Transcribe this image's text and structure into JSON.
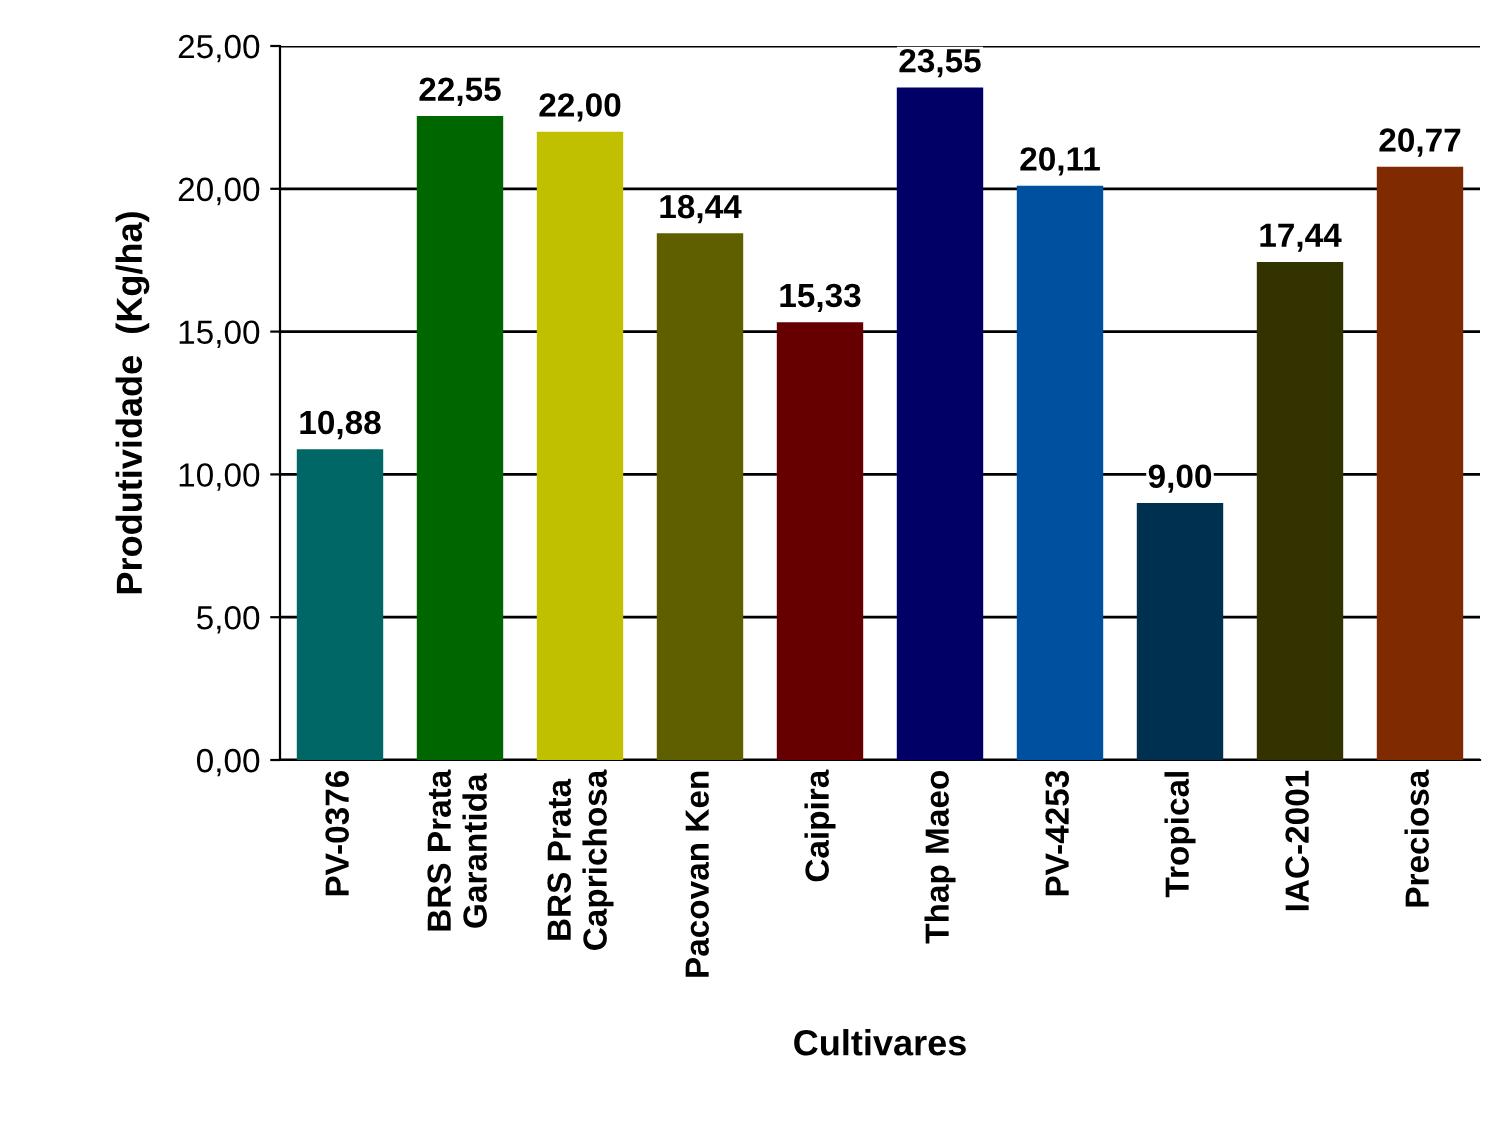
{
  "chart_data": {
    "type": "bar",
    "xlabel": "Cultivares",
    "ylabel": "Produtividade  (Kg/ha)",
    "categories": [
      "PV-0376",
      "BRS Prata\nGarantida",
      "BRS Prata\nCaprichosa",
      "Pacovan Ken",
      "Caipira",
      "Thap Maeo",
      "PV-4253",
      "Tropical",
      "IAC-2001",
      "Preciosa"
    ],
    "values": [
      10.88,
      22.55,
      22.0,
      18.44,
      15.33,
      23.55,
      20.11,
      9.0,
      17.44,
      20.77
    ],
    "value_labels": [
      "10,88",
      "22,55",
      "22,00",
      "18,44",
      "15,33",
      "23,55",
      "20,11",
      "9,00",
      "17,44",
      "20,77"
    ],
    "colors": [
      "#006666",
      "#006600",
      "#c0c000",
      "#5f5f00",
      "#660000",
      "#000066",
      "#0050a0",
      "#003050",
      "#333300",
      "#7f2a00"
    ],
    "ylim": [
      0,
      25
    ],
    "yticks": [
      {
        "value": 0,
        "label": "0,00"
      },
      {
        "value": 5,
        "label": "5,00"
      },
      {
        "value": 10,
        "label": "10,00"
      },
      {
        "value": 15,
        "label": "15,00"
      },
      {
        "value": 20,
        "label": "20,00"
      },
      {
        "value": 25,
        "label": "25,00"
      }
    ],
    "grid": "y"
  }
}
